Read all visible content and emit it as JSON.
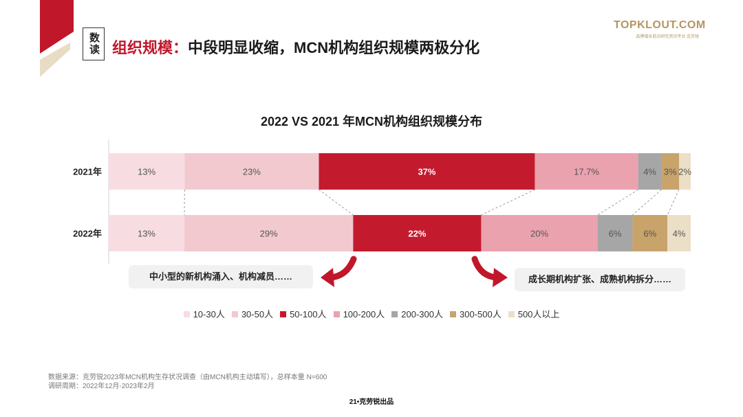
{
  "header": {
    "tag_text": "数读",
    "title_accent": "组织规模：",
    "title_main": "中段明显收缩，MCN机构组织规模两极分化",
    "brand_name": "TOPKLOUT.COM",
    "brand_sub": "品牌增长前沿研究资讯平台 克劳锐"
  },
  "chart_data": {
    "type": "bar",
    "orientation": "horizontal",
    "stacked": "100%",
    "title": "2022 VS 2021 年MCN机构组织规模分布",
    "categories": [
      "2021年",
      "2022年"
    ],
    "series": [
      {
        "name": "10-30人",
        "color": "#f7dde2",
        "values": [
          13,
          13
        ],
        "labels": [
          "13%",
          "13%"
        ]
      },
      {
        "name": "30-50人",
        "color": "#f3c9d0",
        "values": [
          23,
          29
        ],
        "labels": [
          "23%",
          "29%"
        ]
      },
      {
        "name": "50-100人",
        "color": "#c41a2e",
        "values": [
          37,
          22
        ],
        "labels": [
          "37%",
          "22%"
        ]
      },
      {
        "name": "100-200人",
        "color": "#eaa2ae",
        "values": [
          17.7,
          20
        ],
        "labels": [
          "17.7%",
          "20%"
        ]
      },
      {
        "name": "200-300人",
        "color": "#a6a6a6",
        "values": [
          4,
          6
        ],
        "labels": [
          "4%",
          "6%"
        ]
      },
      {
        "name": "300-500人",
        "color": "#c8a36a",
        "values": [
          3,
          6
        ],
        "labels": [
          "3%",
          "6%"
        ]
      },
      {
        "name": "500人以上",
        "color": "#ecdfc8",
        "values": [
          2,
          4
        ],
        "labels": [
          "2%",
          "4%"
        ]
      }
    ],
    "legend_position": "bottom"
  },
  "notes": {
    "left": "中小型的新机构涌入、机构减员……",
    "right": "成长期机构扩张、成熟机构拆分……"
  },
  "footer": {
    "source": "数据来源：克劳锐2023年MCN机构生存状况调查（由MCN机构主动填写），总样本量 N=600",
    "period": "调研周期：2022年12月-2023年2月",
    "page": "21•克劳锐出品"
  },
  "colors": {
    "accent": "#c0172b",
    "brand": "#b49660",
    "deco_red": "#c0172b",
    "deco_beige": "#e8dcc4"
  }
}
